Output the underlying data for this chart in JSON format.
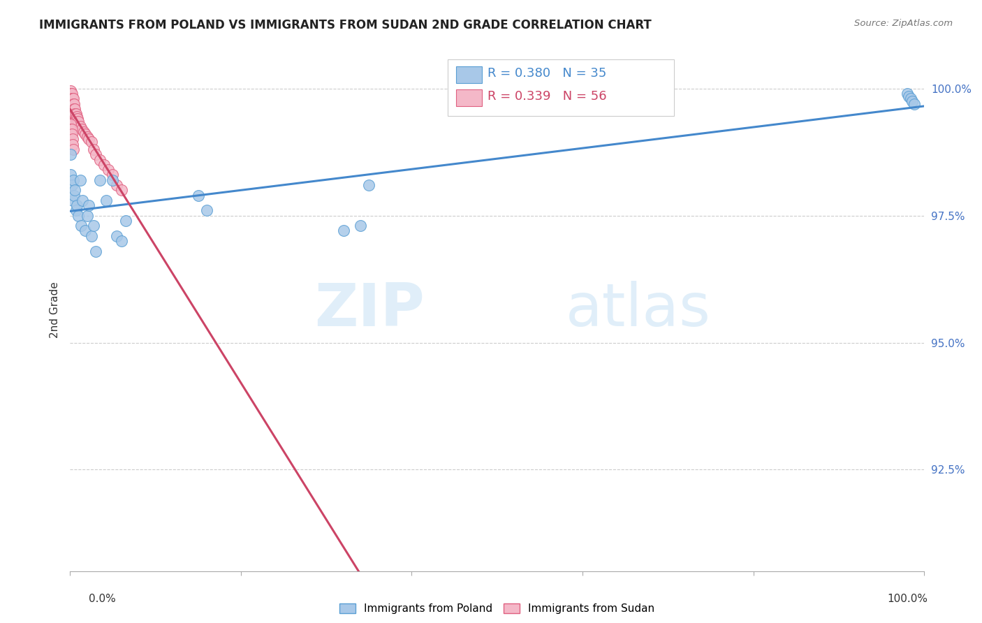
{
  "title": "IMMIGRANTS FROM POLAND VS IMMIGRANTS FROM SUDAN 2ND GRADE CORRELATION CHART",
  "source": "Source: ZipAtlas.com",
  "ylabel": "2nd Grade",
  "watermark_zip": "ZIP",
  "watermark_atlas": "atlas",
  "poland_R": 0.38,
  "poland_N": 35,
  "sudan_R": 0.339,
  "sudan_N": 56,
  "poland_color": "#a8c8e8",
  "sudan_color": "#f4b8c8",
  "poland_edge_color": "#5a9fd4",
  "sudan_edge_color": "#e06080",
  "poland_line_color": "#4488cc",
  "sudan_line_color": "#cc4466",
  "legend_text_color": "#4488cc",
  "ytick_color": "#4472c4",
  "ytick_labels": [
    "92.5%",
    "95.0%",
    "97.5%",
    "100.0%"
  ],
  "ytick_values": [
    0.925,
    0.95,
    0.975,
    1.0
  ],
  "xlim": [
    0.0,
    1.0
  ],
  "ylim": [
    0.905,
    1.008
  ],
  "poland_x": [
    0.001,
    0.001,
    0.002,
    0.003,
    0.004,
    0.005,
    0.006,
    0.007,
    0.008,
    0.01,
    0.012,
    0.013,
    0.015,
    0.018,
    0.02,
    0.022,
    0.025,
    0.028,
    0.03,
    0.035,
    0.042,
    0.05,
    0.055,
    0.06,
    0.065,
    0.15,
    0.16,
    0.32,
    0.34,
    0.35,
    0.98,
    0.982,
    0.984,
    0.986,
    0.988
  ],
  "poland_y": [
    0.987,
    0.983,
    0.981,
    0.978,
    0.982,
    0.979,
    0.98,
    0.976,
    0.977,
    0.975,
    0.982,
    0.973,
    0.978,
    0.972,
    0.975,
    0.977,
    0.971,
    0.973,
    0.968,
    0.982,
    0.978,
    0.982,
    0.971,
    0.97,
    0.974,
    0.979,
    0.976,
    0.972,
    0.973,
    0.981,
    0.999,
    0.9985,
    0.998,
    0.9975,
    0.997
  ],
  "sudan_x": [
    0.0005,
    0.0005,
    0.001,
    0.001,
    0.001,
    0.001,
    0.001,
    0.001,
    0.002,
    0.002,
    0.002,
    0.002,
    0.002,
    0.002,
    0.003,
    0.003,
    0.003,
    0.003,
    0.004,
    0.004,
    0.004,
    0.004,
    0.005,
    0.005,
    0.005,
    0.006,
    0.006,
    0.007,
    0.007,
    0.008,
    0.008,
    0.009,
    0.01,
    0.012,
    0.014,
    0.016,
    0.018,
    0.02,
    0.022,
    0.025,
    0.028,
    0.03,
    0.035,
    0.04,
    0.045,
    0.05,
    0.055,
    0.06,
    0.001,
    0.001,
    0.001,
    0.002,
    0.002,
    0.003,
    0.003,
    0.004
  ],
  "sudan_y": [
    0.9995,
    0.9985,
    0.999,
    0.998,
    0.997,
    0.996,
    0.995,
    0.994,
    0.999,
    0.998,
    0.997,
    0.996,
    0.995,
    0.994,
    0.998,
    0.997,
    0.996,
    0.995,
    0.998,
    0.997,
    0.996,
    0.995,
    0.997,
    0.996,
    0.995,
    0.996,
    0.995,
    0.995,
    0.994,
    0.9945,
    0.9935,
    0.994,
    0.9935,
    0.9925,
    0.992,
    0.9915,
    0.991,
    0.9905,
    0.99,
    0.9895,
    0.988,
    0.987,
    0.986,
    0.985,
    0.984,
    0.983,
    0.981,
    0.98,
    0.993,
    0.992,
    0.991,
    0.992,
    0.991,
    0.99,
    0.989,
    0.988
  ]
}
